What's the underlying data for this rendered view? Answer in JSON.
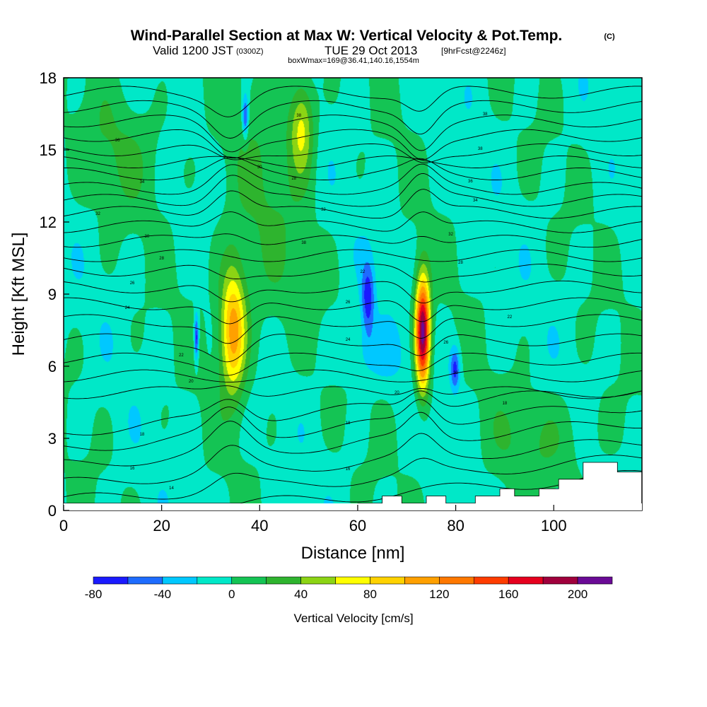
{
  "title": {
    "main": "Wind-Parallel Section at Max W: Vertical Velocity & Pot.Temp.",
    "copyright": "(C)",
    "valid_prefix": "Valid 1200 JST",
    "valid_utc": "(0300Z)",
    "valid_date": "TUE 29 Oct 2013",
    "forecast": "[9hrFcst@2246z]",
    "box_info": "boxWmax=169@36.41,140.16,1554m"
  },
  "colors": {
    "levels": [
      "#1a1aff",
      "#1e6cff",
      "#00c8ff",
      "#00e8c8",
      "#14c454",
      "#2eb42e",
      "#8cd414",
      "#ffff00",
      "#ffd200",
      "#ffa000",
      "#ff7800",
      "#ff3c00",
      "#e6001e",
      "#a0003c",
      "#6a0a96"
    ],
    "terrain": "#ffffff",
    "contour": "#000000"
  },
  "chart_data": {
    "type": "heatmap",
    "xlabel": "Distance [nm]",
    "ylabel": "Height [Kft MSL]",
    "xlim": [
      0,
      118
    ],
    "ylim": [
      0,
      18
    ],
    "xticks": [
      "0",
      "20",
      "40",
      "60",
      "80",
      "100"
    ],
    "xtick_values": [
      0,
      20,
      40,
      60,
      80,
      100
    ],
    "yticks": [
      "0",
      "3",
      "6",
      "9",
      "12",
      "15",
      "18"
    ],
    "ytick_values": [
      0,
      3,
      6,
      9,
      12,
      15,
      18
    ],
    "colorbar": {
      "label": "Vertical Velocity [cm/s]",
      "bounds": [
        -80,
        -60,
        -40,
        -20,
        0,
        20,
        40,
        60,
        80,
        100,
        120,
        140,
        160,
        180,
        200,
        220
      ],
      "tick_labels": [
        "-80",
        "-40",
        "0",
        "40",
        "80",
        "120",
        "160",
        "200"
      ],
      "tick_values": [
        -80,
        -40,
        0,
        40,
        80,
        120,
        160,
        200
      ]
    },
    "background_w": -5,
    "features": [
      {
        "x": 34.5,
        "y": 7.5,
        "rx": 2.6,
        "ry": 2.6,
        "w": 115
      },
      {
        "x": 73.2,
        "y": 7.4,
        "rx": 1.5,
        "ry": 2.3,
        "w": 215
      },
      {
        "x": 27.0,
        "y": 7.2,
        "rx": 0.45,
        "ry": 1.0,
        "w": -75
      },
      {
        "x": 62.0,
        "y": 8.8,
        "rx": 1.3,
        "ry": 1.5,
        "w": -65
      },
      {
        "x": 79.8,
        "y": 5.9,
        "rx": 1.0,
        "ry": 0.9,
        "w": -65
      },
      {
        "x": 37.0,
        "y": 16.4,
        "rx": 0.6,
        "ry": 0.9,
        "w": -65
      },
      {
        "x": 48.5,
        "y": 16.0,
        "rx": 2.5,
        "ry": 2.0,
        "w": 72
      },
      {
        "x": 12.0,
        "y": 15.0,
        "rx": 10.0,
        "ry": 2.5,
        "w": 22
      },
      {
        "x": 62.0,
        "y": 6.5,
        "rx": 7.0,
        "ry": 1.2,
        "w": -22
      },
      {
        "x": 40.0,
        "y": 12.0,
        "rx": 9.0,
        "ry": 6.0,
        "w": 22
      },
      {
        "x": 98.0,
        "y": 3.0,
        "rx": 12.0,
        "ry": 2.0,
        "w": 22
      }
    ],
    "terrain_profile": {
      "x": [
        0,
        59,
        60,
        60,
        65,
        65,
        69,
        69,
        74,
        74,
        78,
        78,
        84,
        84,
        89,
        89,
        92,
        92,
        97,
        97,
        101,
        101,
        106,
        106,
        113,
        113,
        118
      ],
      "height": [
        0,
        0,
        0,
        0.3,
        0.3,
        0.6,
        0.6,
        0.3,
        0.3,
        0.6,
        0.6,
        0.3,
        0.3,
        0.6,
        0.6,
        0.9,
        0.9,
        0.6,
        0.6,
        0.9,
        0.9,
        1.3,
        1.3,
        2.0,
        2.0,
        1.6,
        1.6
      ]
    },
    "contour_labels": [
      "14",
      "16",
      "18",
      "20",
      "22",
      "24",
      "26",
      "28",
      "30",
      "32",
      "34",
      "36",
      "38"
    ],
    "contour_heights_kft": [
      0.6,
      1.3,
      2.0,
      2.8,
      3.5,
      4.2,
      4.9,
      5.6,
      6.3,
      7.1,
      7.9,
      8.6,
      9.3,
      10.0,
      10.6,
      11.2,
      11.8,
      12.4,
      12.9,
      13.4,
      14.0,
      14.5,
      15.0,
      15.6,
      16.2,
      16.8,
      17.4
    ]
  }
}
